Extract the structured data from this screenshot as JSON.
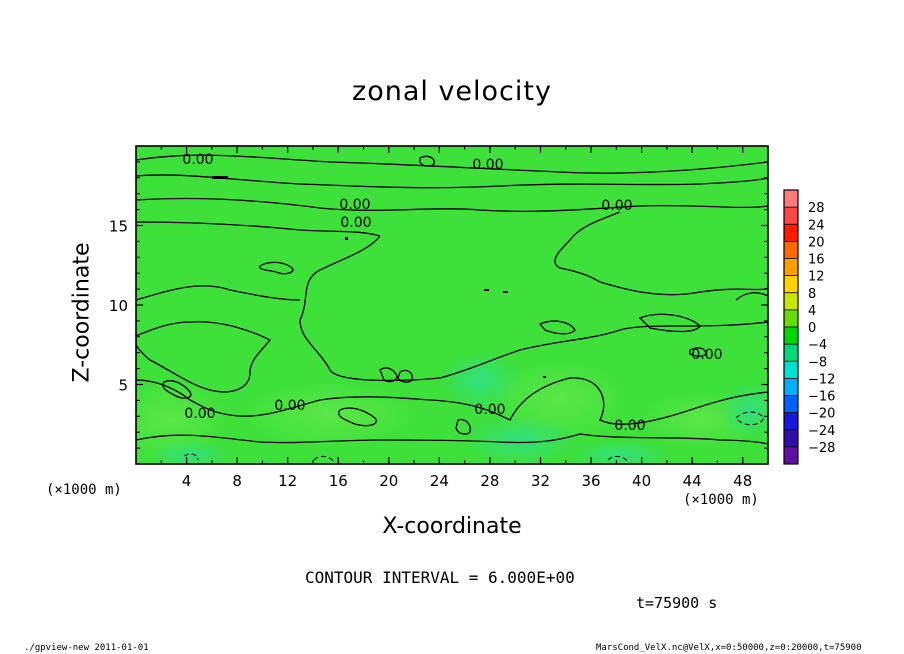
{
  "chart_data": {
    "type": "heatmap",
    "title": "zonal velocity",
    "xlabel": "X-coordinate",
    "ylabel": "Z-coordinate",
    "x_unit": "(×1000 m)",
    "y_unit": "(×1000 m)",
    "xlim": [
      0,
      50
    ],
    "ylim": [
      0,
      20
    ],
    "x_ticks": [
      4,
      8,
      12,
      16,
      20,
      24,
      28,
      32,
      36,
      40,
      44,
      48
    ],
    "y_ticks": [
      5,
      10,
      15
    ],
    "contour_labels": [
      "0.00",
      "0.00",
      "0.00",
      "0.00",
      "0.00",
      "0.00",
      "0.00",
      "0.00",
      "0.00",
      "0.00"
    ],
    "contour_interval_text": "CONTOUR INTERVAL = 6.000E+00",
    "time_text": "t=75900 s",
    "colorbar": {
      "levels": [
        28,
        24,
        20,
        16,
        12,
        8,
        4,
        0,
        -4,
        -8,
        -12,
        -16,
        -20,
        -24,
        -28
      ],
      "colors": [
        "#ff7a7a",
        "#ff4545",
        "#ff1a00",
        "#ff6a00",
        "#ff9e00",
        "#ffd200",
        "#c8e600",
        "#66dd00",
        "#00d600",
        "#00d87a",
        "#00e0d0",
        "#00b0ff",
        "#0060ff",
        "#1818d8",
        "#3010a8",
        "#6010a0"
      ]
    }
  },
  "footer": {
    "left": "./gpview-new  2011-01-01",
    "right": "MarsCond_VelX.nc@VelX,x=0:50000,z=0:20000,t=75900"
  }
}
